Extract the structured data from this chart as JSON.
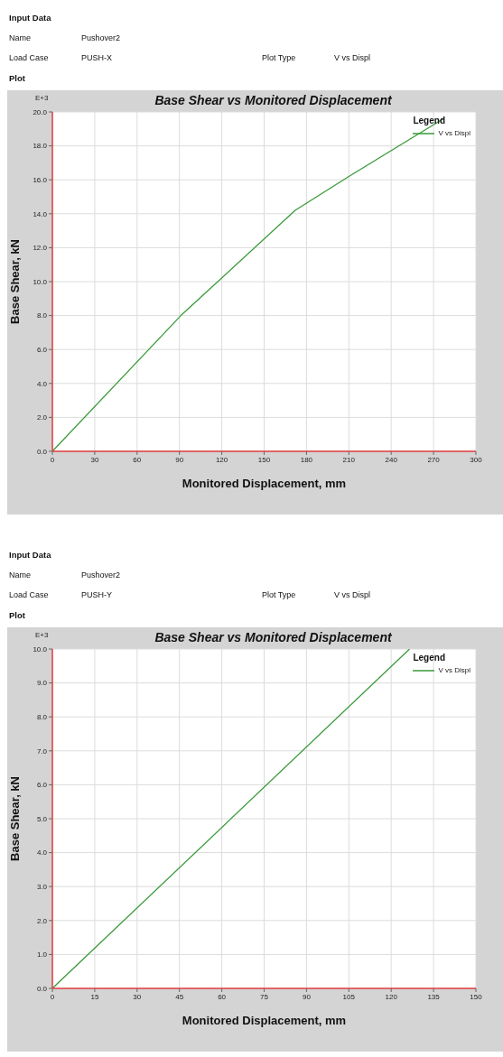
{
  "chart_data": [
    {
      "type": "line",
      "title": "Base Shear vs Monitored Displacement",
      "xlabel": "Monitored Displacement, mm",
      "ylabel": "Base Shear, kN",
      "legend_title": "Legend",
      "annotations": [
        "Input Data",
        "Name",
        "Pushover2",
        "Load Case",
        "PUSH-X",
        "Plot Type",
        "V vs Displ",
        "Plot",
        "E+3"
      ],
      "x": [
        0,
        91,
        172,
        210,
        277
      ],
      "series": [
        {
          "name": "V vs Displ",
          "color": "#3a9a3a",
          "values": [
            0,
            8.0,
            14.2,
            16.2,
            19.6
          ]
        }
      ],
      "xlim": [
        0,
        300
      ],
      "xticks": [
        0,
        30,
        60,
        90,
        120,
        150,
        180,
        210,
        240,
        270,
        300
      ],
      "ylim": [
        0,
        20
      ],
      "yticks": [
        {
          "value": 0,
          "label": "0.0"
        },
        {
          "value": 2,
          "label": "2.0"
        },
        {
          "value": 4,
          "label": "4.0"
        },
        {
          "value": 6,
          "label": "6.0"
        },
        {
          "value": 8,
          "label": "8.0"
        },
        {
          "value": 10,
          "label": "10.0"
        },
        {
          "value": 12,
          "label": "12.0"
        },
        {
          "value": 14,
          "label": "14.0"
        },
        {
          "value": 16,
          "label": "16.0"
        },
        {
          "value": 18,
          "label": "18.0"
        },
        {
          "value": 20,
          "label": "20.0"
        }
      ],
      "grid": true,
      "legend": "top right"
    },
    {
      "type": "line",
      "title": "Base Shear vs Monitored Displacement",
      "xlabel": "Monitored Displacement, mm",
      "ylabel": "Base Shear, kN",
      "legend_title": "Legend",
      "annotations": [
        "Input Data",
        "Name",
        "Pushover2",
        "Load Case",
        "PUSH-Y",
        "Plot Type",
        "V vs Displ",
        "Plot",
        "E+3"
      ],
      "x": [
        0,
        126.5
      ],
      "series": [
        {
          "name": "V vs Displ",
          "color": "#3a9a3a",
          "values": [
            0,
            10.0
          ]
        }
      ],
      "xlim": [
        0,
        150
      ],
      "xticks": [
        0,
        15,
        30,
        45,
        60,
        75,
        90,
        105,
        120,
        135,
        150
      ],
      "ylim": [
        0,
        10
      ],
      "yticks": [
        {
          "value": 0,
          "label": "0.0"
        },
        {
          "value": 1,
          "label": "1.0"
        },
        {
          "value": 2,
          "label": "2.0"
        },
        {
          "value": 3,
          "label": "3.0"
        },
        {
          "value": 4,
          "label": "4.0"
        },
        {
          "value": 5,
          "label": "5.0"
        },
        {
          "value": 6,
          "label": "6.0"
        },
        {
          "value": 7,
          "label": "7.0"
        },
        {
          "value": 8,
          "label": "8.0"
        },
        {
          "value": 9,
          "label": "9.0"
        },
        {
          "value": 10,
          "label": "10.0"
        }
      ],
      "grid": true,
      "legend": "top right"
    }
  ]
}
